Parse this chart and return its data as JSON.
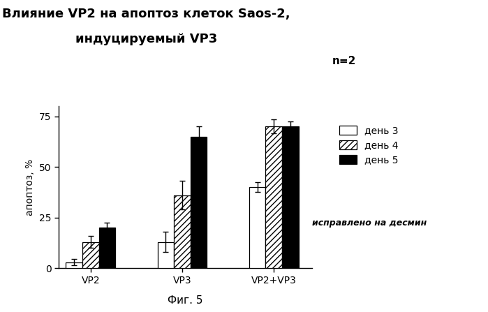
{
  "title_line1": "Влияние VP2 на апоптоз клеток Saos-2,",
  "title_line2": "индуцируемый VP3",
  "xlabel_groups": [
    "VP2",
    "VP3",
    "VP2+VP3"
  ],
  "ylabel": "апоптоз, %",
  "series_labels": [
    "день 3",
    "день 4",
    "день 5"
  ],
  "values": [
    [
      3,
      13,
      40
    ],
    [
      13,
      36,
      70
    ],
    [
      20,
      65,
      70
    ]
  ],
  "errors": [
    [
      1.5,
      5,
      2.5
    ],
    [
      3,
      7,
      3.5
    ],
    [
      2.5,
      5,
      2.5
    ]
  ],
  "ylim": [
    0,
    80
  ],
  "yticks": [
    0,
    25,
    50,
    75
  ],
  "n_label": "n=2",
  "footnote": "исправлено на десмин",
  "fig_label": "Фиг. 5",
  "bar_width": 0.18,
  "group_positions": [
    1.0,
    2.0,
    3.0
  ],
  "background_color": "#ffffff",
  "bar_colors": [
    "white",
    "white",
    "black"
  ],
  "hatch_patterns": [
    "",
    "////",
    ""
  ],
  "edge_color": "black"
}
